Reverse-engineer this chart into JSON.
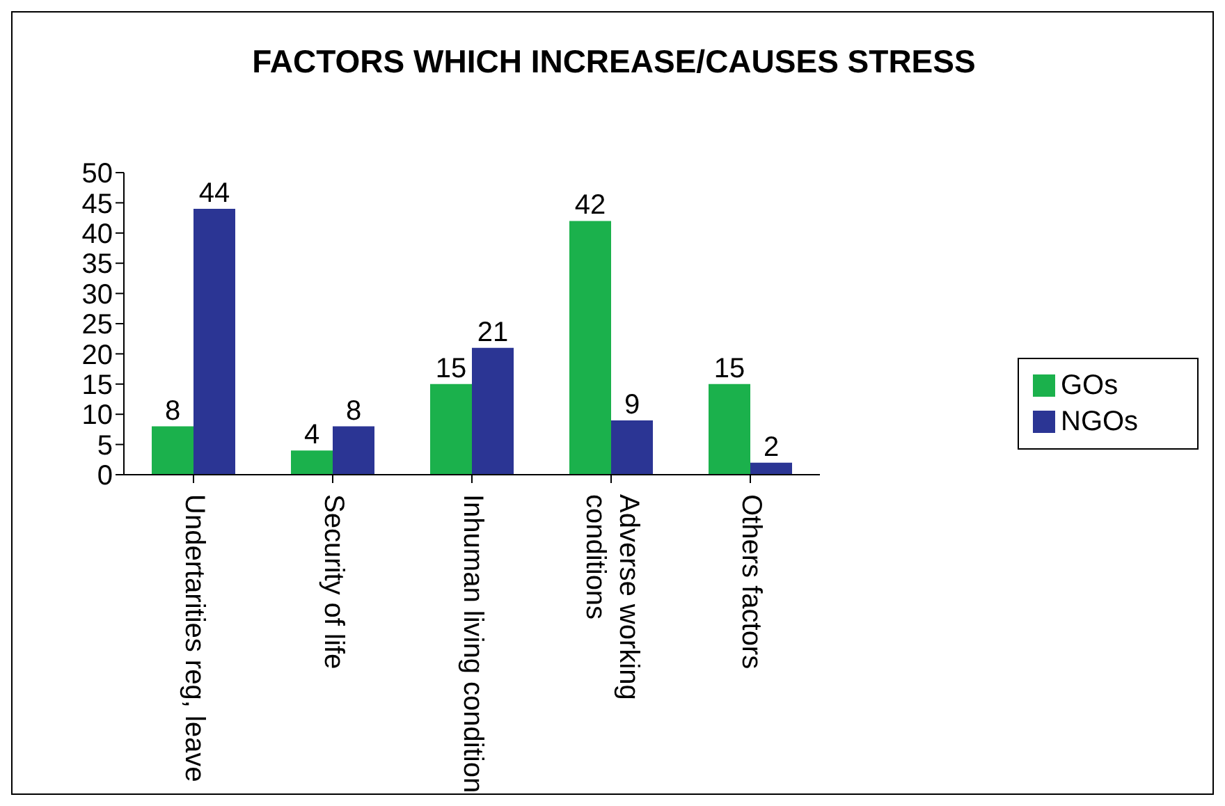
{
  "chart_data": {
    "type": "bar",
    "title": "FACTORS WHICH INCREASE/CAUSES STRESS",
    "categories": [
      "Undertarities reg, leave",
      "Security of life",
      "Inhuman living condition",
      "Adverse working conditions",
      "Others factors"
    ],
    "series": [
      {
        "name": "GOs",
        "color": "#1bb14c",
        "values": [
          8,
          4,
          15,
          42,
          15
        ]
      },
      {
        "name": "NGOs",
        "color": "#2b3594",
        "values": [
          44,
          8,
          21,
          9,
          2
        ]
      }
    ],
    "ylim": [
      0,
      50
    ],
    "yticks": [
      0,
      5,
      10,
      15,
      20,
      25,
      30,
      35,
      40,
      45,
      50
    ],
    "grid": false,
    "legend": "right",
    "data_labels": true
  }
}
